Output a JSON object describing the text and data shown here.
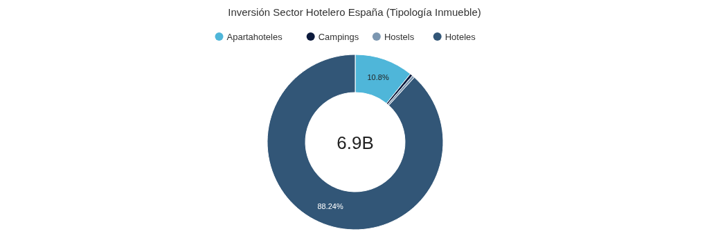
{
  "chart_data": {
    "type": "donut",
    "title": "Inversión Sector Hotelero España (Tipología Inmueble)",
    "categories": [
      "Apartahoteles",
      "Campings",
      "Hostels",
      "Hoteles"
    ],
    "values": [
      10.8,
      0.5,
      0.46,
      88.24
    ],
    "value_labels": [
      "10.8%",
      null,
      null,
      "88.24%"
    ],
    "colors": [
      "#4fb6d9",
      "#0c1a3c",
      "#7b96b0",
      "#325677"
    ],
    "annotations": [
      "6.9B"
    ],
    "legend": "top"
  }
}
